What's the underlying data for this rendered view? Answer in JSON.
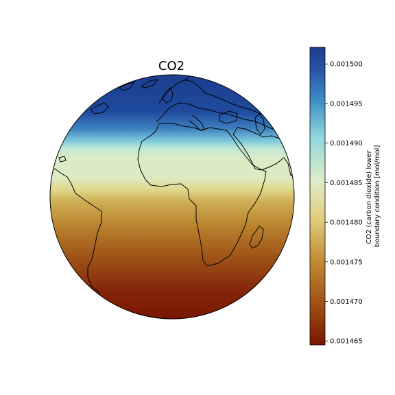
{
  "title": "CO2",
  "colorbar": {
    "label_lines": [
      "CO2 (carbon dioxide) lower",
      "boundary condition [mol/mol]"
    ],
    "min": 0.0014645,
    "max": 0.0015021,
    "ticks": [
      0.0015,
      0.001495,
      0.00149,
      0.001485,
      0.00148,
      0.001475,
      0.00147,
      0.001465
    ],
    "tick_labels": [
      "0.001500",
      "0.001495",
      "0.001490",
      "0.001485",
      "0.001480",
      "0.001475",
      "0.001470",
      "0.001465"
    ],
    "colors": [
      "#7a1500",
      "#9b4a12",
      "#c08a35",
      "#e0cc7a",
      "#dfedc8",
      "#8fd6dd",
      "#3f8fc4",
      "#2a56a8",
      "#1c3d8e"
    ]
  },
  "chart_data": {
    "type": "heatmap",
    "title": "CO2",
    "projection": "orthographic",
    "field": "CO2 (carbon dioxide) lower boundary condition [mol/mol]",
    "gradient": "latitudinal",
    "value_range": [
      0.0014645,
      0.0015021
    ],
    "coastlines": true
  }
}
